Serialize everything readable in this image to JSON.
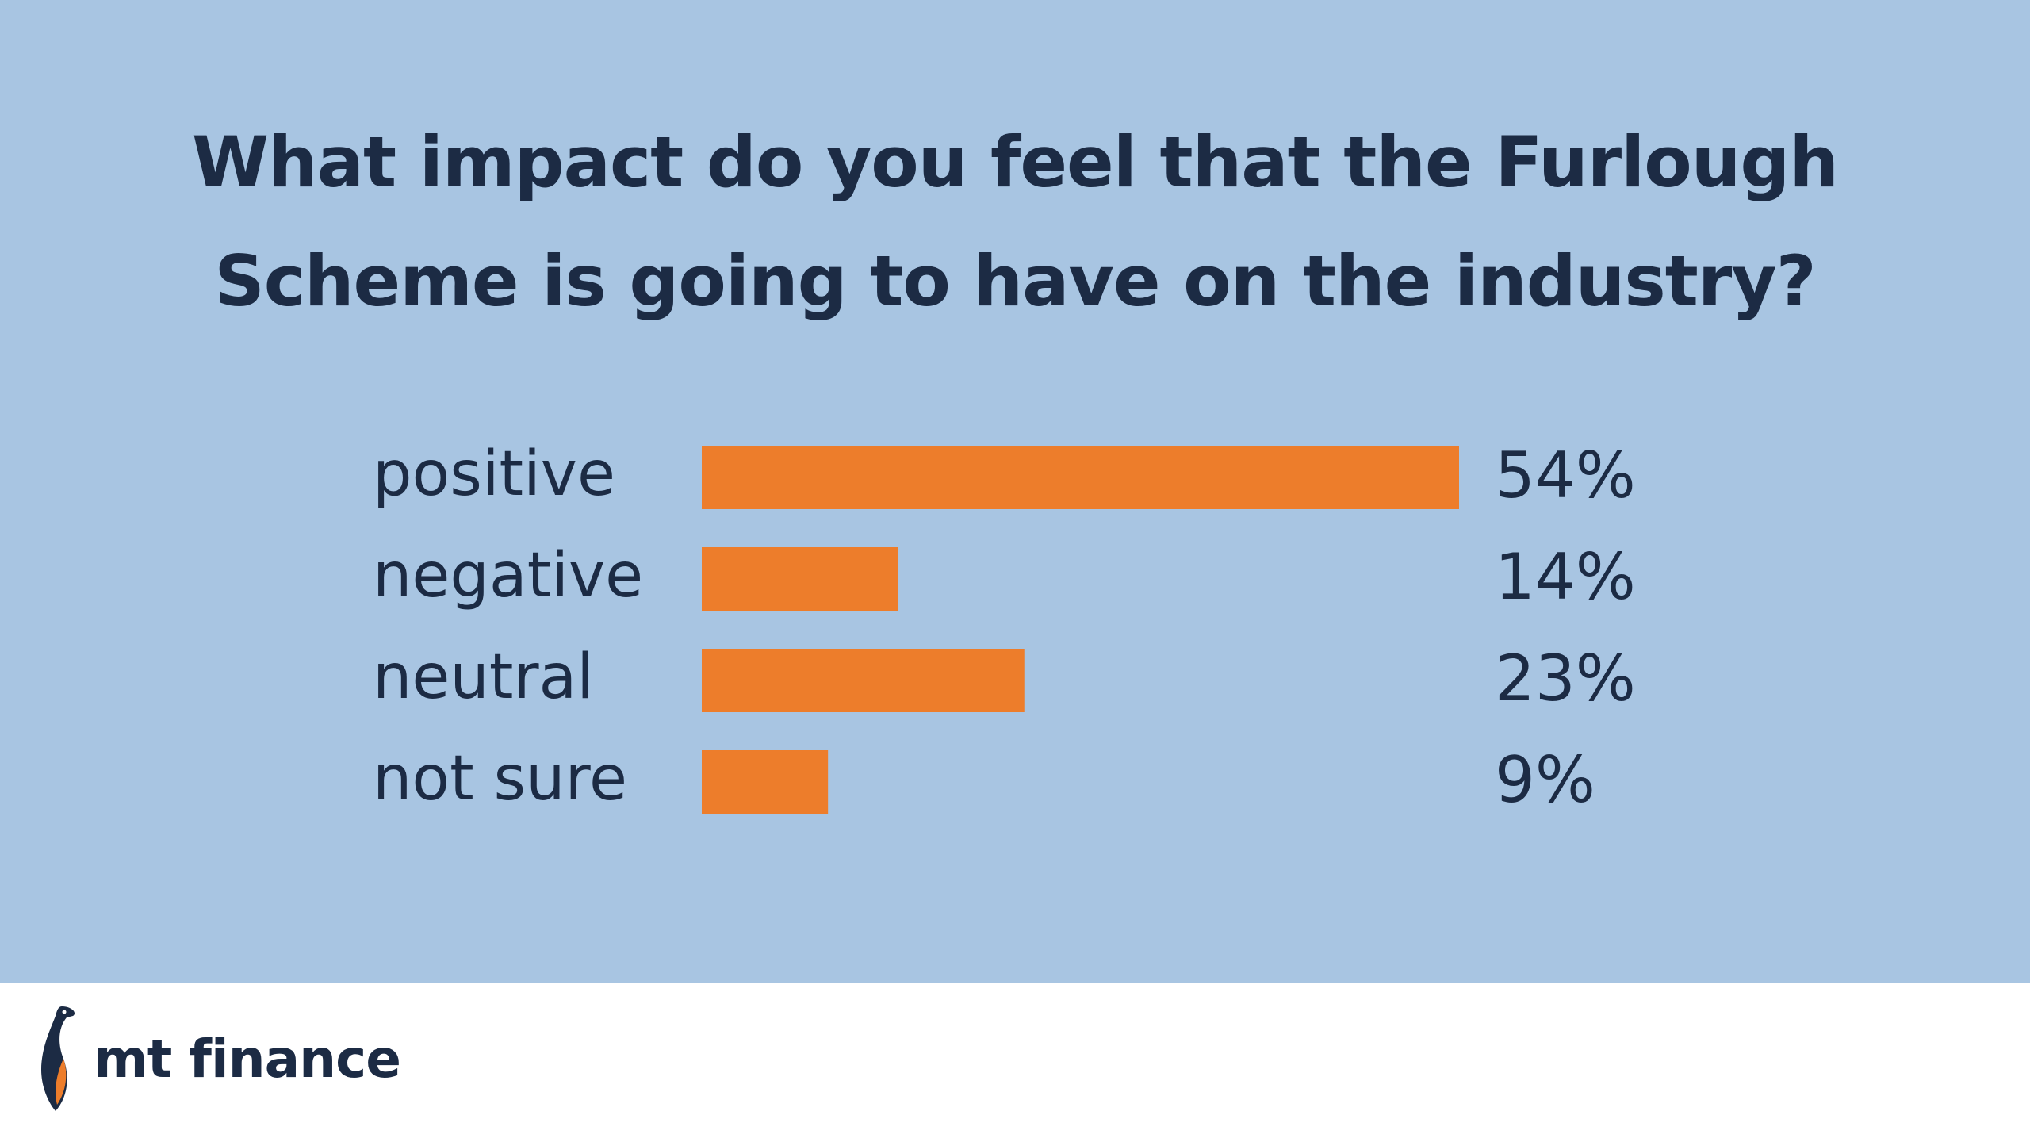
{
  "chart_data": {
    "type": "bar",
    "orientation": "horizontal",
    "title_lines": [
      "What impact do you feel that the Furlough",
      "Scheme is going to have on the industry?"
    ],
    "categories": [
      "positive",
      "negative",
      "neutral",
      "not sure"
    ],
    "values": [
      54,
      14,
      23,
      9
    ],
    "value_labels": [
      "54%",
      "14%",
      "23%",
      "9%"
    ],
    "unit": "%",
    "xlim": [
      0,
      54
    ],
    "grid": false,
    "legend": "none",
    "bar_color": "#ed7d2b"
  },
  "brand": {
    "name": "mt finance",
    "icon": "penguin-icon"
  },
  "colors": {
    "background_panel": "#a8c5e2",
    "text": "#1c2b44",
    "accent": "#ed7d2b",
    "footer": "#ffffff"
  }
}
